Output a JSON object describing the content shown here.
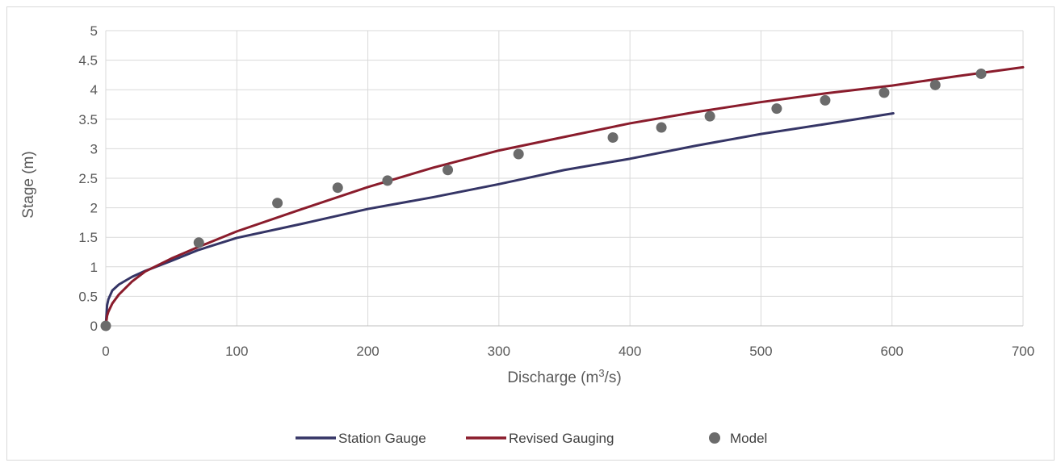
{
  "chart_data": {
    "type": "line",
    "title": "",
    "xlabel": "Discharge (m",
    "xlabel_superscript": "3",
    "xlabel_suffix": "/s)",
    "ylabel": "Stage (m)",
    "xlim": [
      0,
      700
    ],
    "ylim": [
      0,
      5
    ],
    "xticks": [
      "0",
      "100",
      "200",
      "300",
      "400",
      "500",
      "600",
      "700"
    ],
    "yticks": [
      "0",
      "0.5",
      "1",
      "1.5",
      "2",
      "2.5",
      "3",
      "3.5",
      "4",
      "4.5",
      "5"
    ],
    "grid": true,
    "legend_position": "bottom",
    "series": [
      {
        "name": "Station Gauge",
        "kind": "line",
        "color": "#353566",
        "x": [
          0,
          1,
          2,
          5,
          10,
          20,
          30,
          50,
          70,
          100,
          150,
          200,
          250,
          300,
          350,
          400,
          450,
          500,
          550,
          601
        ],
        "y": [
          0,
          0.35,
          0.45,
          0.6,
          0.7,
          0.83,
          0.93,
          1.1,
          1.28,
          1.49,
          1.73,
          1.98,
          2.18,
          2.4,
          2.64,
          2.83,
          3.05,
          3.25,
          3.42,
          3.6
        ]
      },
      {
        "name": "Revised Gauging",
        "kind": "line",
        "color": "#8a1c2c",
        "x": [
          0,
          1,
          2,
          5,
          10,
          20,
          30,
          50,
          70,
          100,
          150,
          200,
          250,
          300,
          350,
          400,
          450,
          500,
          550,
          600,
          650,
          700
        ],
        "y": [
          0,
          0.17,
          0.24,
          0.38,
          0.53,
          0.75,
          0.92,
          1.14,
          1.33,
          1.6,
          1.98,
          2.35,
          2.68,
          2.97,
          3.2,
          3.43,
          3.62,
          3.79,
          3.94,
          4.07,
          4.23,
          4.38
        ]
      },
      {
        "name": "Model",
        "kind": "scatter",
        "color": "#6b6b6b",
        "x": [
          0,
          71,
          131,
          177,
          215,
          261,
          315,
          387,
          424,
          461,
          512,
          549,
          594,
          633,
          668
        ],
        "y": [
          0,
          1.41,
          2.08,
          2.34,
          2.46,
          2.64,
          2.91,
          3.19,
          3.36,
          3.55,
          3.68,
          3.82,
          3.95,
          4.08,
          4.27
        ]
      }
    ]
  }
}
